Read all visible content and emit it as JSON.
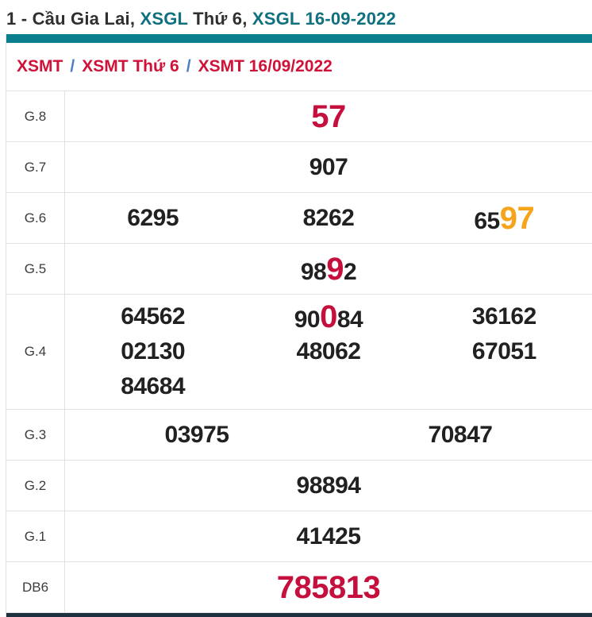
{
  "page_title": {
    "segments": [
      {
        "text": "1 - Cầu Gia Lai, ",
        "style": "dark",
        "link": false
      },
      {
        "text": "XSGL",
        "style": "teal",
        "link": true
      },
      {
        "text": " Thứ 6, ",
        "style": "dark",
        "link": false
      },
      {
        "text": "XSGL 16-09-2022",
        "style": "teal",
        "link": true
      }
    ]
  },
  "breadcrumb": {
    "separator": "/",
    "items": [
      {
        "label": "XSMT"
      },
      {
        "label": "XSMT Thứ 6"
      },
      {
        "label": "XSMT 16/09/2022"
      }
    ]
  },
  "results_table": {
    "rows": [
      {
        "label": "G.8",
        "cols": 1,
        "values": [
          [
            {
              "t": "57",
              "s": "red"
            }
          ]
        ]
      },
      {
        "label": "G.7",
        "cols": 1,
        "values": [
          [
            {
              "t": "907",
              "s": "n"
            }
          ]
        ]
      },
      {
        "label": "G.6",
        "cols": 3,
        "values": [
          [
            {
              "t": "6295",
              "s": "n"
            }
          ],
          [
            {
              "t": "8262",
              "s": "n"
            }
          ],
          [
            {
              "t": "65",
              "s": "n"
            },
            {
              "t": "97",
              "s": "orange"
            }
          ]
        ]
      },
      {
        "label": "G.5",
        "cols": 1,
        "values": [
          [
            {
              "t": "98",
              "s": "n"
            },
            {
              "t": "9",
              "s": "red"
            },
            {
              "t": "2",
              "s": "n"
            }
          ]
        ]
      },
      {
        "label": "G.4",
        "cols": 3,
        "values": [
          [
            {
              "t": "64562",
              "s": "n"
            }
          ],
          [
            {
              "t": "90",
              "s": "n"
            },
            {
              "t": "0",
              "s": "red"
            },
            {
              "t": "84",
              "s": "n"
            }
          ],
          [
            {
              "t": "36162",
              "s": "n"
            }
          ],
          [
            {
              "t": "02130",
              "s": "n"
            }
          ],
          [
            {
              "t": "48062",
              "s": "n"
            }
          ],
          [
            {
              "t": "67051",
              "s": "n"
            }
          ],
          [
            {
              "t": "84684",
              "s": "n"
            }
          ]
        ]
      },
      {
        "label": "G.3",
        "cols": 2,
        "values": [
          [
            {
              "t": "03975",
              "s": "n"
            }
          ],
          [
            {
              "t": "70847",
              "s": "n"
            }
          ]
        ]
      },
      {
        "label": "G.2",
        "cols": 1,
        "values": [
          [
            {
              "t": "98894",
              "s": "n"
            }
          ]
        ]
      },
      {
        "label": "G.1",
        "cols": 1,
        "values": [
          [
            {
              "t": "41425",
              "s": "n"
            }
          ]
        ]
      },
      {
        "label": "DB6",
        "cols": 1,
        "values": [
          [
            {
              "t": "785813",
              "s": "red"
            }
          ]
        ]
      }
    ]
  },
  "colors": {
    "teal_bar": "#0a7e8c",
    "teal_text": "#0f7080",
    "breadcrumb_red": "#d01238",
    "separator_blue": "#4d7fc0",
    "digit_black": "#212121",
    "highlight_red": "#c50f3c",
    "highlight_orange": "#f6a41c",
    "border_gray": "#e1e1e1",
    "bottom_bar_dark": "#1c313d"
  }
}
